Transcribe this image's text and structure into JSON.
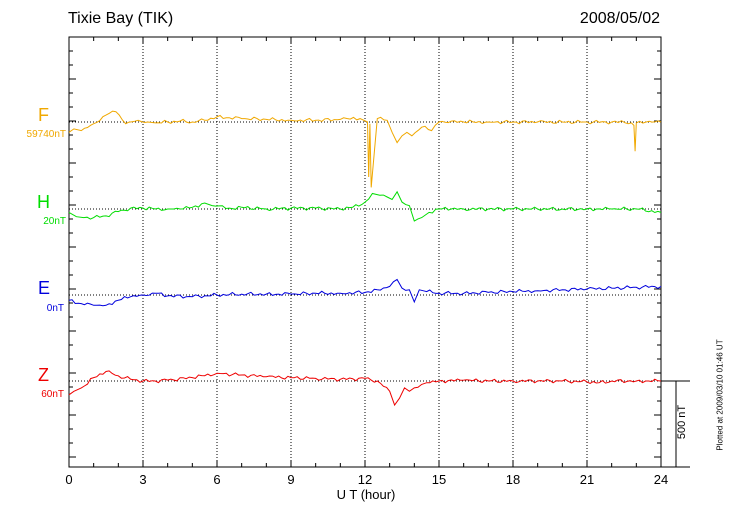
{
  "header": {
    "station": "Tixie Bay (TIK)",
    "date": "2008/05/02"
  },
  "footer": {
    "plotted": "Plotted at 2009/03/10 01:46 UT",
    "scale_bar": "500 nT"
  },
  "chart_data": {
    "type": "line",
    "xlabel": "U T (hour)",
    "xlim": [
      0,
      24
    ],
    "xticks": [
      "0",
      "3",
      "6",
      "9",
      "12",
      "15",
      "18",
      "21",
      "24"
    ],
    "scale_bar_nT": 500,
    "grid": "dotted vertical lines every 3 hours",
    "series": [
      {
        "name": "F",
        "baseline": "59740nT",
        "color": "#f0a800",
        "x": [
          0,
          0.2,
          0.5,
          1.0,
          1.5,
          1.9,
          2.3,
          2.8,
          3.2,
          3.5,
          4.0,
          4.5,
          5.0,
          5.5,
          6.0,
          6.5,
          7.0,
          8.0,
          9.0,
          10.0,
          11.0,
          11.8,
          12.1,
          12.15,
          12.2,
          12.25,
          12.5,
          12.9,
          13.1,
          13.3,
          13.5,
          13.7,
          13.9,
          14.3,
          14.7,
          15.0,
          15.5,
          16.0,
          17.0,
          18.0,
          19.0,
          20.0,
          21.0,
          22.0,
          22.8,
          22.9,
          22.95,
          23.0,
          23.4,
          24.0
        ],
        "y": [
          -60,
          -40,
          -50,
          -10,
          40,
          60,
          -10,
          10,
          0,
          -5,
          0,
          5,
          0,
          10,
          30,
          25,
          20,
          15,
          10,
          10,
          15,
          20,
          0,
          -320,
          -10,
          -380,
          20,
          10,
          -60,
          -120,
          -80,
          -60,
          -80,
          -30,
          -50,
          0,
          5,
          0,
          0,
          0,
          0,
          0,
          0,
          0,
          -5,
          -20,
          -170,
          -5,
          0,
          0
        ]
      },
      {
        "name": "H",
        "baseline": "20nT",
        "color": "#00dd00",
        "x": [
          0,
          0.3,
          0.6,
          1.0,
          1.5,
          2.0,
          2.5,
          3.0,
          3.5,
          4.0,
          4.5,
          5.0,
          5.5,
          5.8,
          6.5,
          7.0,
          8.0,
          9.0,
          10.0,
          11.0,
          11.5,
          12.0,
          12.3,
          12.6,
          12.9,
          13.1,
          13.3,
          13.5,
          13.8,
          14.0,
          14.3,
          14.6,
          15.0,
          15.5,
          16.0,
          17.0,
          18.0,
          19.0,
          20.0,
          21.0,
          22.0,
          23.0,
          24.0
        ],
        "y": [
          -20,
          -45,
          -50,
          -50,
          -40,
          -15,
          5,
          5,
          0,
          0,
          0,
          10,
          35,
          20,
          5,
          10,
          0,
          5,
          5,
          0,
          10,
          40,
          90,
          80,
          70,
          55,
          100,
          40,
          20,
          -70,
          -50,
          -20,
          0,
          0,
          0,
          0,
          0,
          0,
          0,
          0,
          0,
          0,
          -20
        ]
      },
      {
        "name": "E",
        "baseline": "0nT",
        "color": "#0000dd",
        "x": [
          0,
          0.5,
          1.0,
          1.5,
          2.0,
          2.5,
          3.0,
          3.5,
          4.0,
          5.0,
          6.0,
          7.0,
          8.0,
          9.0,
          10.0,
          11.0,
          12.0,
          12.5,
          13.0,
          13.3,
          13.5,
          13.8,
          14.0,
          14.2,
          14.5,
          15.0,
          16.0,
          17.0,
          18.0,
          19.0,
          20.0,
          21.0,
          22.0,
          23.0,
          24.0
        ],
        "y": [
          -30,
          -50,
          -60,
          -60,
          -30,
          -10,
          0,
          10,
          -5,
          -10,
          0,
          5,
          5,
          5,
          10,
          10,
          15,
          30,
          50,
          90,
          40,
          30,
          -40,
          30,
          20,
          10,
          10,
          15,
          20,
          25,
          30,
          35,
          40,
          45,
          50
        ]
      },
      {
        "name": "Z",
        "baseline": "60nT",
        "color": "#ee0000",
        "x": [
          0,
          0.2,
          0.5,
          1.0,
          1.5,
          2.0,
          2.5,
          3.0,
          3.5,
          4.0,
          5.0,
          6.0,
          7.0,
          8.0,
          9.0,
          10.0,
          11.0,
          12.0,
          12.5,
          13.0,
          13.2,
          13.4,
          13.6,
          13.8,
          14.0,
          14.3,
          14.5,
          15.0,
          16.0,
          17.0,
          18.0,
          19.0,
          20.0,
          21.0,
          21.5,
          22.0,
          23.0,
          24.0
        ],
        "y": [
          -80,
          -60,
          -40,
          20,
          55,
          30,
          10,
          0,
          0,
          5,
          20,
          45,
          35,
          25,
          20,
          15,
          10,
          15,
          0,
          -60,
          -140,
          -100,
          -40,
          -60,
          -40,
          -20,
          -10,
          0,
          5,
          0,
          0,
          0,
          0,
          -5,
          -10,
          0,
          0,
          0
        ]
      }
    ]
  }
}
